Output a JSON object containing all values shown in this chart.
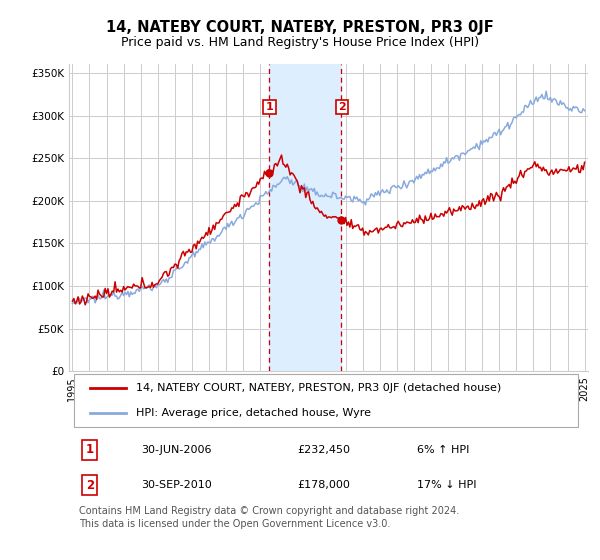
{
  "title": "14, NATEBY COURT, NATEBY, PRESTON, PR3 0JF",
  "subtitle": "Price paid vs. HM Land Registry's House Price Index (HPI)",
  "ylabel_ticks": [
    "£0",
    "£50K",
    "£100K",
    "£150K",
    "£200K",
    "£250K",
    "£300K",
    "£350K"
  ],
  "ylim": [
    0,
    360000
  ],
  "yticks": [
    0,
    50000,
    100000,
    150000,
    200000,
    250000,
    300000,
    350000
  ],
  "sale1_year": 2006.5,
  "sale1_price": 232450,
  "sale2_year": 2010.75,
  "sale2_price": 178000,
  "legend_line1": "14, NATEBY COURT, NATEBY, PRESTON, PR3 0JF (detached house)",
  "legend_line2": "HPI: Average price, detached house, Wyre",
  "table_row1": [
    "1",
    "30-JUN-2006",
    "£232,450",
    "6% ↑ HPI"
  ],
  "table_row2": [
    "2",
    "30-SEP-2010",
    "£178,000",
    "17% ↓ HPI"
  ],
  "footer": "Contains HM Land Registry data © Crown copyright and database right 2024.\nThis data is licensed under the Open Government Licence v3.0.",
  "red_color": "#cc0000",
  "blue_color": "#88aadd",
  "shade_color": "#ddeeff",
  "grid_color": "#cccccc",
  "bg_color": "#ffffff",
  "title_fontsize": 10.5,
  "subtitle_fontsize": 9,
  "tick_fontsize": 7.5,
  "legend_fontsize": 8,
  "table_fontsize": 8,
  "footer_fontsize": 7,
  "start_year": 1995,
  "end_year": 2025
}
